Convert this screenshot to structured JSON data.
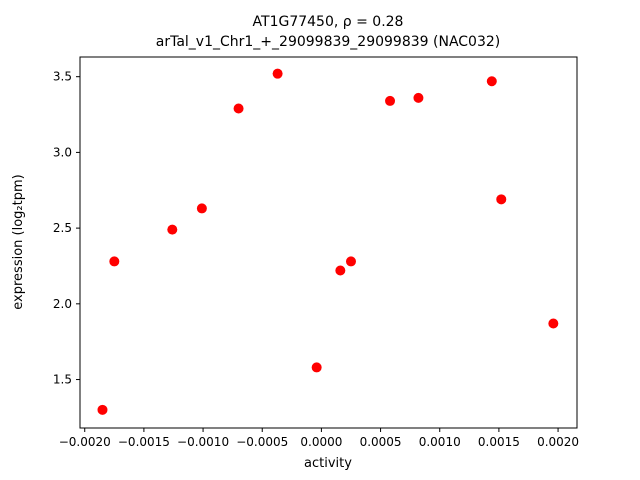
{
  "chart_data": {
    "type": "scatter",
    "title_line1": "AT1G77450, ρ = 0.28",
    "title_line2": "arTal_v1_Chr1_+_29099839_29099839 (NAC032)",
    "xlabel": "activity",
    "ylabel": "expression (log₂tpm)",
    "xlim": [
      -0.00204,
      0.00216
    ],
    "ylim": [
      1.18,
      3.63
    ],
    "xticks": [
      -0.002,
      -0.0015,
      -0.001,
      -0.0005,
      0.0,
      0.0005,
      0.001,
      0.0015,
      0.002
    ],
    "yticks": [
      1.5,
      2.0,
      2.5,
      3.0,
      3.5
    ],
    "marker_color": "#ff0000",
    "marker_radius": 5,
    "grid": false,
    "legend": null,
    "points": [
      [
        -0.00185,
        1.3
      ],
      [
        -0.00175,
        2.28
      ],
      [
        -0.00126,
        2.49
      ],
      [
        -0.00101,
        2.63
      ],
      [
        -0.0007,
        3.29
      ],
      [
        -0.00037,
        3.52
      ],
      [
        -4e-05,
        1.58
      ],
      [
        0.00016,
        2.22
      ],
      [
        0.00025,
        2.28
      ],
      [
        0.00058,
        3.34
      ],
      [
        0.00082,
        3.36
      ],
      [
        0.00144,
        3.47
      ],
      [
        0.00152,
        2.69
      ],
      [
        0.00196,
        1.87
      ]
    ]
  }
}
